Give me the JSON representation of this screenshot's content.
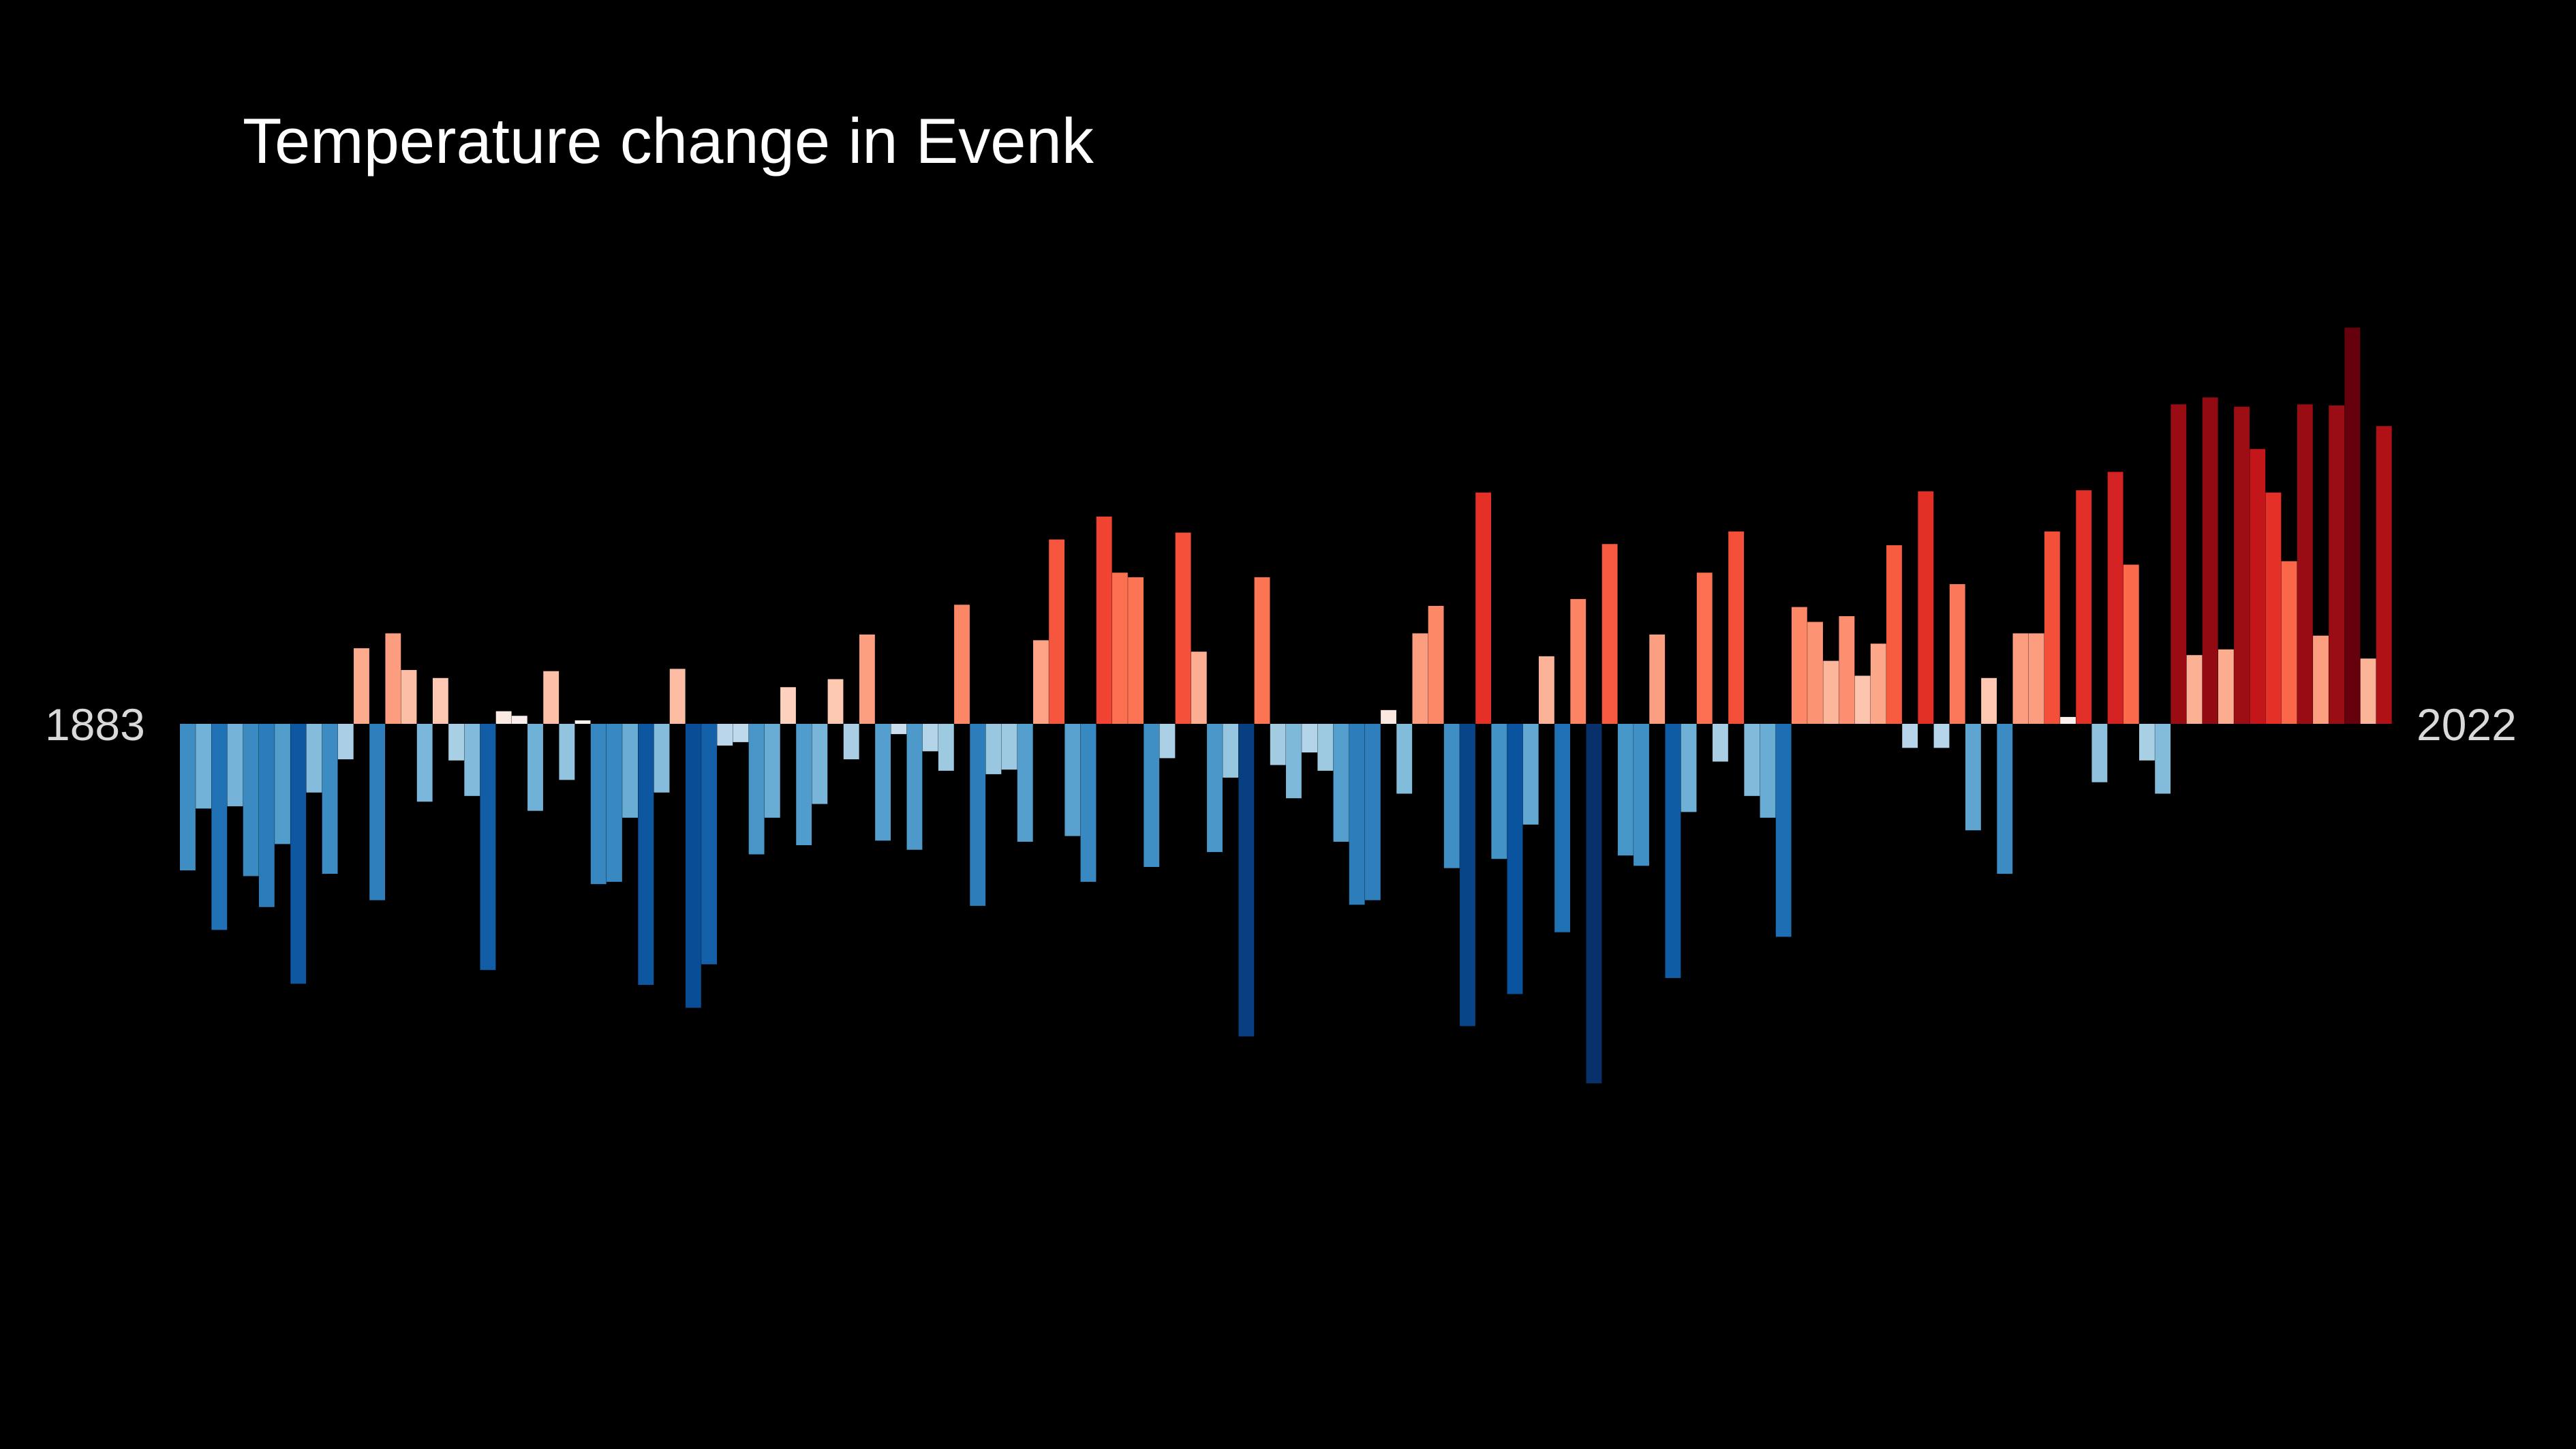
{
  "chart_data": {
    "type": "bar",
    "title": "Temperature change in Evenk",
    "xlabel": "",
    "ylabel": "",
    "start_year": "1883",
    "end_year": "2022",
    "ylim": [
      -3.0,
      4.0
    ],
    "grid": false,
    "legend": "none",
    "colormap": "RdBu_r",
    "values": [
      -1.28,
      -0.74,
      -1.8,
      -0.72,
      -1.33,
      -1.6,
      -1.05,
      -2.27,
      -0.6,
      -1.31,
      -0.31,
      0.66,
      -1.54,
      0.79,
      0.47,
      -0.68,
      0.4,
      -0.32,
      -0.63,
      -2.15,
      0.11,
      0.07,
      -0.76,
      0.46,
      -0.49,
      0.03,
      -1.4,
      -1.38,
      -0.82,
      -2.28,
      -0.6,
      0.48,
      -2.48,
      -2.1,
      -0.19,
      -0.16,
      -1.14,
      -0.82,
      0.32,
      -1.06,
      -0.7,
      0.39,
      -0.31,
      0.78,
      -1.02,
      -0.09,
      -1.1,
      -0.24,
      -0.41,
      1.04,
      -1.59,
      -0.44,
      -0.4,
      -1.03,
      0.73,
      1.61,
      -0.98,
      -1.38,
      1.81,
      1.32,
      1.28,
      -1.25,
      -0.3,
      1.67,
      0.63,
      -1.12,
      -0.47,
      -2.73,
      1.28,
      -0.36,
      -0.65,
      -0.25,
      -0.41,
      -1.03,
      -1.58,
      -1.54,
      0.12,
      -0.61,
      0.79,
      1.03,
      -1.26,
      -2.64,
      2.02,
      -1.18,
      -2.36,
      -0.88,
      0.59,
      -1.82,
      1.09,
      -3.14,
      1.57,
      -1.15,
      -1.24,
      0.78,
      -2.22,
      -0.77,
      1.32,
      -0.33,
      1.68,
      -0.63,
      -0.82,
      -1.86,
      1.02,
      0.89,
      0.55,
      0.94,
      0.42,
      0.7,
      1.56,
      -0.21,
      2.03,
      -0.21,
      1.22,
      -0.93,
      0.4,
      -1.31,
      0.79,
      0.79,
      1.68,
      0.06,
      2.04,
      -0.51,
      2.2,
      1.39,
      -0.32,
      -0.61,
      2.79,
      0.6,
      2.85,
      0.65,
      2.77,
      2.4,
      2.02,
      1.42,
      2.79,
      0.77,
      2.78,
      3.46,
      0.57,
      2.6
    ]
  }
}
